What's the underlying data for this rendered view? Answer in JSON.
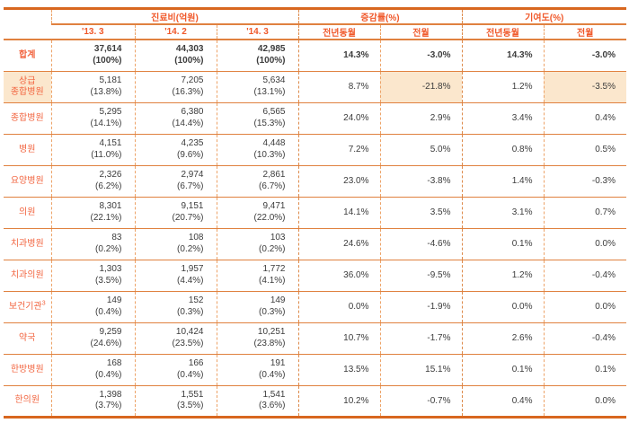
{
  "colors": {
    "border_heavy": "#d8671f",
    "border_row": "#e0813f",
    "border_dash": "#eda368",
    "border_dash_strong": "#dd8a4a",
    "header_text": "#f0582a",
    "label_text": "#f26540",
    "cell_text": "#3c3c3c",
    "highlight_bg": "#fbe7cd"
  },
  "table": {
    "groups": [
      {
        "label": "진료비(억원)",
        "subs": [
          "'13. 3",
          "'14. 2",
          "'14. 3"
        ]
      },
      {
        "label": "증감률(%)",
        "subs": [
          "전년동월",
          "전월"
        ]
      },
      {
        "label": "기여도(%)",
        "subs": [
          "전년동월",
          "전월"
        ]
      }
    ],
    "rows": [
      {
        "label_lines": [
          "합계"
        ],
        "bold": true,
        "cost": [
          [
            "37,614",
            "(100%)"
          ],
          [
            "44,303",
            "(100%)"
          ],
          [
            "42,985",
            "(100%)"
          ]
        ],
        "pct": [
          "14.3%",
          "-3.0%",
          "14.3%",
          "-3.0%"
        ]
      },
      {
        "label_lines": [
          "상급",
          "종합병원"
        ],
        "highlight_label": true,
        "highlight_pct": [
          1,
          3
        ],
        "cost": [
          [
            "5,181",
            "(13.8%)"
          ],
          [
            "7,205",
            "(16.3%)"
          ],
          [
            "5,634",
            "(13.1%)"
          ]
        ],
        "pct": [
          "8.7%",
          "-21.8%",
          "1.2%",
          "-3.5%"
        ]
      },
      {
        "label_lines": [
          "종합병원"
        ],
        "cost": [
          [
            "5,295",
            "(14.1%)"
          ],
          [
            "6,380",
            "(14.4%)"
          ],
          [
            "6,565",
            "(15.3%)"
          ]
        ],
        "pct": [
          "24.0%",
          "2.9%",
          "3.4%",
          "0.4%"
        ]
      },
      {
        "label_lines": [
          "병원"
        ],
        "cost": [
          [
            "4,151",
            "(11.0%)"
          ],
          [
            "4,235",
            "(9.6%)"
          ],
          [
            "4,448",
            "(10.3%)"
          ]
        ],
        "pct": [
          "7.2%",
          "5.0%",
          "0.8%",
          "0.5%"
        ]
      },
      {
        "label_lines": [
          "요양병원"
        ],
        "cost": [
          [
            "2,326",
            "(6.2%)"
          ],
          [
            "2,974",
            "(6.7%)"
          ],
          [
            "2,861",
            "(6.7%)"
          ]
        ],
        "pct": [
          "23.0%",
          "-3.8%",
          "1.4%",
          "-0.3%"
        ]
      },
      {
        "label_lines": [
          "의원"
        ],
        "cost": [
          [
            "8,301",
            "(22.1%)"
          ],
          [
            "9,151",
            "(20.7%)"
          ],
          [
            "9,471",
            "(22.0%)"
          ]
        ],
        "pct": [
          "14.1%",
          "3.5%",
          "3.1%",
          "0.7%"
        ]
      },
      {
        "label_lines": [
          "치과병원"
        ],
        "cost": [
          [
            "83",
            "(0.2%)"
          ],
          [
            "108",
            "(0.2%)"
          ],
          [
            "103",
            "(0.2%)"
          ]
        ],
        "pct": [
          "24.6%",
          "-4.6%",
          "0.1%",
          "0.0%"
        ]
      },
      {
        "label_lines": [
          "치과의원"
        ],
        "cost": [
          [
            "1,303",
            "(3.5%)"
          ],
          [
            "1,957",
            "(4.4%)"
          ],
          [
            "1,772",
            "(4.1%)"
          ]
        ],
        "pct": [
          "36.0%",
          "-9.5%",
          "1.2%",
          "-0.4%"
        ]
      },
      {
        "label_lines": [
          "보건기관"
        ],
        "label_sup": "3",
        "cost": [
          [
            "149",
            "(0.4%)"
          ],
          [
            "152",
            "(0.3%)"
          ],
          [
            "149",
            "(0.3%)"
          ]
        ],
        "pct": [
          "0.0%",
          "-1.9%",
          "0.0%",
          "0.0%"
        ]
      },
      {
        "label_lines": [
          "약국"
        ],
        "cost": [
          [
            "9,259",
            "(24.6%)"
          ],
          [
            "10,424",
            "(23.5%)"
          ],
          [
            "10,251",
            "(23.8%)"
          ]
        ],
        "pct": [
          "10.7%",
          "-1.7%",
          "2.6%",
          "-0.4%"
        ]
      },
      {
        "label_lines": [
          "한방병원"
        ],
        "cost": [
          [
            "168",
            "(0.4%)"
          ],
          [
            "166",
            "(0.4%)"
          ],
          [
            "191",
            "(0.4%)"
          ]
        ],
        "pct": [
          "13.5%",
          "15.1%",
          "0.1%",
          "0.1%"
        ]
      },
      {
        "label_lines": [
          "한의원"
        ],
        "cost": [
          [
            "1,398",
            "(3.7%)"
          ],
          [
            "1,551",
            "(3.5%)"
          ],
          [
            "1,541",
            "(3.6%)"
          ]
        ],
        "pct": [
          "10.2%",
          "-0.7%",
          "0.4%",
          "0.0%"
        ]
      }
    ]
  }
}
